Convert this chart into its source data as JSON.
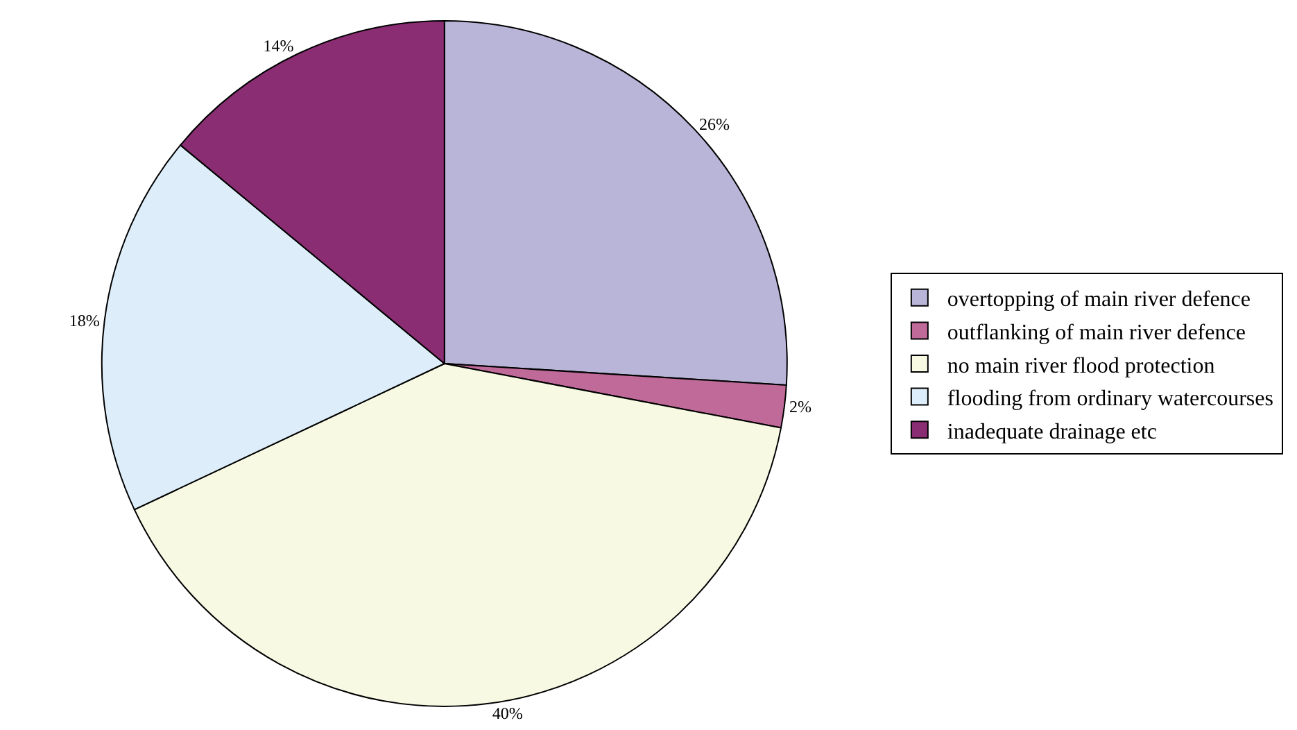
{
  "chart_data": {
    "type": "pie",
    "categories": [
      "overtopping of main river defence",
      "outflanking of main river defence",
      "no main river flood protection",
      "flooding from ordinary watercourses",
      "inadequate drainage etc"
    ],
    "values": [
      26,
      2,
      40,
      18,
      14
    ],
    "colors": [
      "#b9b5d9",
      "#c06a9a",
      "#f7f9e3",
      "#ddeefa",
      "#8b2d73"
    ],
    "value_labels": [
      "26%",
      "2%",
      "40%",
      "18%",
      "14%"
    ],
    "legend": "right"
  }
}
